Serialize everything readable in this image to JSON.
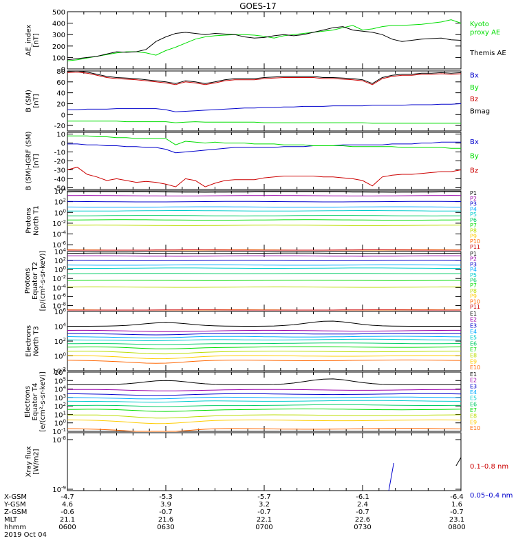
{
  "title": "GOES-17",
  "colors": {
    "black": "#000000",
    "green": "#00dd00",
    "blue": "#0000cc",
    "red": "#cc0000",
    "ch": [
      "#000000",
      "#9900aa",
      "#0000cc",
      "#00aaff",
      "#00cccc",
      "#00cc66",
      "#00dd00",
      "#bbdd00",
      "#ffcc00",
      "#ff6600",
      "#cc0000"
    ]
  },
  "chart_data": [
    {
      "type": "line",
      "ylabel": [
        "AE_index",
        "[nT]"
      ],
      "ylim": [
        0,
        500
      ],
      "yticks": [
        "0",
        "100",
        "200",
        "300",
        "400",
        "500"
      ],
      "x": [
        0,
        3,
        6,
        9,
        12,
        15,
        18,
        21,
        24,
        27,
        30,
        33,
        36,
        39,
        42,
        45,
        48,
        51,
        54,
        57,
        60,
        63,
        66,
        69,
        72,
        75,
        78,
        81,
        84,
        87,
        90,
        93,
        96,
        99,
        102,
        105,
        108,
        111,
        114,
        117,
        120
      ],
      "series": [
        {
          "name": "Kyoto proxy AE",
          "color": "green",
          "values": [
            70,
            80,
            95,
            110,
            125,
            140,
            150,
            150,
            140,
            120,
            160,
            190,
            225,
            260,
            280,
            290,
            295,
            300,
            300,
            295,
            285,
            270,
            290,
            300,
            310,
            320,
            330,
            340,
            360,
            380,
            340,
            350,
            370,
            380,
            380,
            385,
            390,
            400,
            410,
            430,
            400
          ]
        },
        {
          "name": "Themis AE",
          "color": "black",
          "values": [
            80,
            90,
            100,
            110,
            130,
            150,
            145,
            150,
            170,
            240,
            280,
            310,
            320,
            310,
            300,
            310,
            305,
            300,
            280,
            270,
            275,
            290,
            300,
            290,
            300,
            320,
            340,
            360,
            370,
            340,
            330,
            320,
            300,
            260,
            240,
            250,
            260,
            265,
            270,
            255,
            250
          ]
        }
      ],
      "legend": [
        {
          "text": "Kyoto",
          "color": "green"
        },
        {
          "text": "proxy AE",
          "color": "green"
        },
        {
          "text": "Themis AE",
          "color": "black"
        }
      ]
    },
    {
      "type": "line",
      "ylabel": [
        "B (SM)",
        "[nT]"
      ],
      "ylim": [
        -30,
        80
      ],
      "yticks": [
        "-20",
        "0",
        "20",
        "40",
        "60",
        "80"
      ],
      "x": [
        0,
        3,
        6,
        9,
        12,
        15,
        18,
        21,
        24,
        27,
        30,
        33,
        36,
        39,
        42,
        45,
        48,
        51,
        54,
        57,
        60,
        63,
        66,
        69,
        72,
        75,
        78,
        81,
        84,
        87,
        90,
        93,
        96,
        99,
        102,
        105,
        108,
        111,
        114,
        117,
        120
      ],
      "series": [
        {
          "name": "Bx",
          "color": "blue",
          "values": [
            9,
            9,
            10,
            10,
            10,
            11,
            11,
            11,
            11,
            11,
            9,
            5,
            6,
            7,
            8,
            9,
            10,
            11,
            12,
            12,
            13,
            13,
            14,
            14,
            15,
            15,
            15,
            16,
            16,
            16,
            16,
            17,
            17,
            17,
            17,
            18,
            18,
            18,
            19,
            19,
            20
          ]
        },
        {
          "name": "By",
          "color": "green",
          "values": [
            -12,
            -12,
            -12,
            -12,
            -12,
            -12,
            -13,
            -13,
            -13,
            -13,
            -13,
            -15,
            -14,
            -13,
            -14,
            -14,
            -14,
            -14,
            -14,
            -14,
            -15,
            -15,
            -15,
            -15,
            -15,
            -15,
            -15,
            -15,
            -15,
            -15,
            -15,
            -16,
            -16,
            -16,
            -16,
            -16,
            -16,
            -16,
            -16,
            -16,
            -16
          ]
        },
        {
          "name": "Bz",
          "color": "red",
          "values": [
            77,
            78,
            76,
            72,
            68,
            66,
            65,
            64,
            62,
            60,
            58,
            55,
            60,
            58,
            55,
            58,
            62,
            64,
            64,
            64,
            66,
            67,
            68,
            68,
            68,
            68,
            66,
            66,
            65,
            64,
            62,
            55,
            66,
            70,
            72,
            72,
            74,
            74,
            75,
            74,
            75
          ]
        },
        {
          "name": "Bmag",
          "color": "black",
          "values": [
            79,
            80,
            78,
            74,
            70,
            68,
            67,
            66,
            64,
            62,
            60,
            57,
            62,
            60,
            57,
            60,
            64,
            66,
            66,
            66,
            68,
            69,
            70,
            70,
            70,
            70,
            68,
            68,
            67,
            66,
            64,
            57,
            68,
            72,
            74,
            74,
            76,
            76,
            77,
            76,
            77
          ]
        }
      ],
      "legend": [
        {
          "text": "Bx",
          "color": "blue"
        },
        {
          "text": "By",
          "color": "green"
        },
        {
          "text": "Bz",
          "color": "red"
        },
        {
          "text": "Bmag",
          "color": "black"
        }
      ]
    },
    {
      "type": "line",
      "ylabel": [
        "B (SM)-IGRF (SM)",
        "[nT]"
      ],
      "ylim": [
        -52,
        12
      ],
      "yticks": [
        "-50",
        "-40",
        "-30",
        "-20",
        "-10",
        "0",
        "10"
      ],
      "x": [
        0,
        3,
        6,
        9,
        12,
        15,
        18,
        21,
        24,
        27,
        30,
        33,
        36,
        39,
        42,
        45,
        48,
        51,
        54,
        57,
        60,
        63,
        66,
        69,
        72,
        75,
        78,
        81,
        84,
        87,
        90,
        93,
        96,
        99,
        102,
        105,
        108,
        111,
        114,
        117,
        120
      ],
      "series": [
        {
          "name": "Bx",
          "color": "blue",
          "values": [
            -1,
            -1,
            -2,
            -2,
            -3,
            -3,
            -4,
            -4,
            -5,
            -5,
            -7,
            -11,
            -10,
            -9,
            -8,
            -7,
            -6,
            -5,
            -5,
            -5,
            -5,
            -5,
            -4,
            -4,
            -4,
            -3,
            -3,
            -3,
            -2,
            -2,
            -2,
            -2,
            -2,
            -1,
            -1,
            -1,
            0,
            0,
            1,
            1,
            1
          ]
        },
        {
          "name": "By",
          "color": "green",
          "values": [
            8,
            8,
            8,
            7,
            7,
            6,
            6,
            5,
            5,
            5,
            5,
            -2,
            2,
            1,
            0,
            1,
            0,
            0,
            0,
            -1,
            -1,
            -1,
            -2,
            -2,
            -2,
            -3,
            -3,
            -3,
            -3,
            -4,
            -4,
            -4,
            -4,
            -4,
            -5,
            -5,
            -5,
            -5,
            -5,
            -6,
            -6
          ]
        },
        {
          "name": "Bz",
          "color": "red",
          "values": [
            -30,
            -27,
            -35,
            -38,
            -42,
            -40,
            -42,
            -44,
            -43,
            -44,
            -46,
            -49,
            -40,
            -42,
            -49,
            -45,
            -42,
            -41,
            -41,
            -41,
            -39,
            -38,
            -37,
            -37,
            -37,
            -37,
            -38,
            -38,
            -39,
            -40,
            -42,
            -48,
            -38,
            -36,
            -35,
            -35,
            -34,
            -33,
            -32,
            -32,
            -30
          ]
        }
      ],
      "legend": [
        {
          "text": "Bx",
          "color": "blue"
        },
        {
          "text": "By",
          "color": "green"
        },
        {
          "text": "Bz",
          "color": "red"
        }
      ]
    },
    {
      "type": "line",
      "scale": "log",
      "ylabel": [
        "Protons",
        "North T1"
      ],
      "ylim_exp": [
        -7,
        4
      ],
      "yticks": [
        {
          "exp": 4,
          "label": "10",
          "sup": "4"
        },
        {
          "exp": 2,
          "label": "10",
          "sup": "2"
        },
        {
          "exp": 0,
          "label": "10",
          "sup": "0"
        },
        {
          "exp": -2,
          "label": "10",
          "sup": "-2"
        },
        {
          "exp": -4,
          "label": "10",
          "sup": "-4"
        },
        {
          "exp": -6,
          "label": "10",
          "sup": "-6"
        }
      ],
      "channels": [
        "P1",
        "P2",
        "P3",
        "P4",
        "P5",
        "P6",
        "P7",
        "P8",
        "P9",
        "P10",
        "P11"
      ],
      "levels_exp": [
        3.8,
        3.1,
        2.0,
        1.0,
        0.3,
        -0.6,
        -1.4,
        -2.4,
        -7,
        -7,
        -7
      ]
    },
    {
      "type": "line",
      "scale": "log",
      "ylabel": [
        "Protons",
        "Equator T2",
        "[p/(cm²-s-sr-keV)]"
      ],
      "ylim_exp": [
        -9,
        4
      ],
      "yticks": [
        {
          "exp": 4,
          "label": "10",
          "sup": "4"
        },
        {
          "exp": 2,
          "label": "10",
          "sup": "2"
        },
        {
          "exp": 0,
          "label": "10",
          "sup": "0"
        },
        {
          "exp": -2,
          "label": "10",
          "sup": "-2"
        },
        {
          "exp": -4,
          "label": "10",
          "sup": "-4"
        },
        {
          "exp": -6,
          "label": "10",
          "sup": "-6"
        },
        {
          "exp": -8,
          "label": "10",
          "sup": "-8"
        }
      ],
      "channels": [
        "P1",
        "P2",
        "P3",
        "P4",
        "P5",
        "P6",
        "P7",
        "P8",
        "P9",
        "P10",
        "P11"
      ],
      "levels_exp": [
        3.6,
        3.0,
        2.0,
        1.0,
        0.3,
        -0.9,
        -2.4,
        -3.9,
        -9,
        -9,
        -9
      ]
    },
    {
      "type": "line",
      "scale": "log",
      "ylabel": [
        "Electrons",
        "North T3"
      ],
      "ylim_exp": [
        -2,
        6
      ],
      "yticks": [
        {
          "exp": 6,
          "label": "10",
          "sup": "6"
        },
        {
          "exp": 4,
          "label": "10",
          "sup": "4"
        },
        {
          "exp": 2,
          "label": "10",
          "sup": "2"
        },
        {
          "exp": 0,
          "label": "10",
          "sup": "0"
        },
        {
          "exp": -2,
          "label": "10",
          "sup": "-2"
        }
      ],
      "channels": [
        "E1",
        "E2",
        "E3",
        "E4",
        "E5",
        "E6",
        "E7",
        "E8",
        "E9",
        "E10"
      ],
      "levels_exp": [
        4.2,
        3.4,
        3.0,
        2.6,
        2.2,
        1.7,
        1.2,
        0.6,
        0.0,
        -0.6
      ]
    },
    {
      "type": "line",
      "scale": "log",
      "ylabel": [
        "Electrons",
        "Equator T4",
        "[e/(cm²-s-sr-keV)]"
      ],
      "ylim_exp": [
        -1,
        6
      ],
      "yticks": [
        {
          "exp": 6,
          "label": "10",
          "sup": "6"
        },
        {
          "exp": 5,
          "label": "10",
          "sup": "5"
        },
        {
          "exp": 4,
          "label": "10",
          "sup": "4"
        },
        {
          "exp": 3,
          "label": "10",
          "sup": "3"
        },
        {
          "exp": 2,
          "label": "10",
          "sup": "2"
        },
        {
          "exp": 1,
          "label": "10",
          "sup": "1"
        },
        {
          "exp": 0,
          "label": "10",
          "sup": "0"
        },
        {
          "exp": -1,
          "label": "10",
          "sup": "-1"
        }
      ],
      "channels": [
        "E1",
        "E2",
        "E3",
        "E4",
        "E5",
        "E6",
        "E7",
        "E8",
        "E9",
        "E10"
      ],
      "levels_exp": [
        4.7,
        3.9,
        3.4,
        3.0,
        2.6,
        2.1,
        1.6,
        0.9,
        0.3,
        -0.7
      ]
    },
    {
      "type": "line",
      "scale": "log",
      "ylabel": [
        "Xray flux",
        "[W/m2]"
      ],
      "yticks": [
        {
          "label": "10",
          "sup": "-8"
        },
        {
          "label": "10",
          "sup": "-9"
        }
      ],
      "legend": [
        {
          "text": "0.1–0.8 nm",
          "color": "red"
        },
        {
          "text": "0.05–0.4 nm",
          "color": "blue"
        }
      ]
    }
  ],
  "xaxis": {
    "time_labels": [
      "0600",
      "0630",
      "0700",
      "0730",
      "0800"
    ],
    "rows": [
      {
        "label": "X-GSM",
        "values": [
          "-4.7",
          "-5.3",
          "-5.7",
          "-6.1",
          "-6.4"
        ]
      },
      {
        "label": "Y-GSM",
        "values": [
          "4.6",
          "3.9",
          "3.2",
          "2.4",
          "1.6"
        ]
      },
      {
        "label": "Z-GSM",
        "values": [
          "-0.6",
          "-0.7",
          "-0.7",
          "-0.7",
          "-0.7"
        ]
      },
      {
        "label": "MLT",
        "values": [
          "21.1",
          "21.6",
          "22.1",
          "22.6",
          "23.1"
        ]
      },
      {
        "label": "hhmm",
        "values": [
          "0600",
          "0630",
          "0700",
          "0730",
          "0800"
        ]
      }
    ],
    "date": "2019 Oct 04"
  }
}
